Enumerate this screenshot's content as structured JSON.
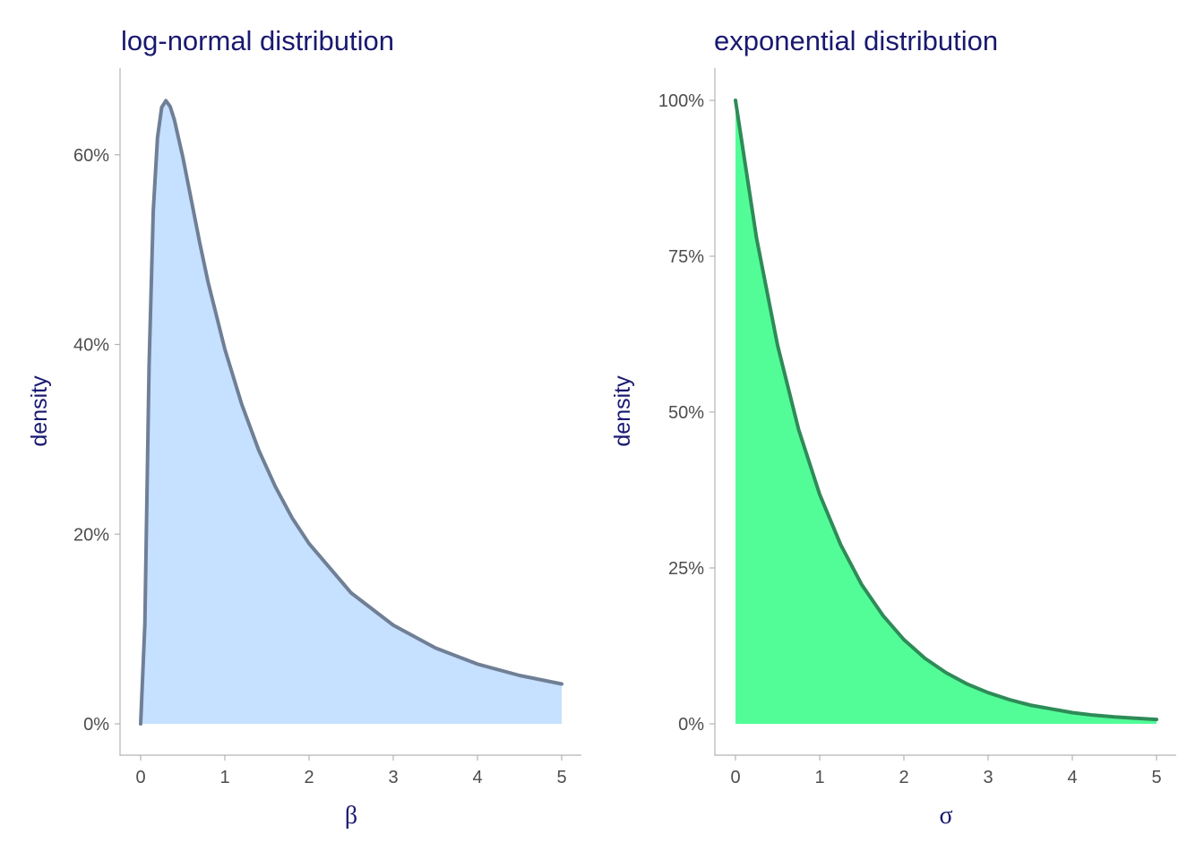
{
  "chart_data": [
    {
      "type": "area",
      "title": "log-normal distribution",
      "xlabel": "β",
      "ylabel": "density",
      "xlim": [
        0,
        5
      ],
      "ylim": [
        0,
        0.66
      ],
      "x_ticks": [
        0,
        1,
        2,
        3,
        4,
        5
      ],
      "y_ticks": [
        0,
        0.2,
        0.4,
        0.6
      ],
      "y_tick_labels": [
        "0%",
        "20%",
        "40%",
        "60%"
      ],
      "fill_color": "#c6e0ff",
      "line_color": "#6f7f96",
      "series": [
        {
          "x": [
            0.0,
            0.05,
            0.1,
            0.15,
            0.2,
            0.25,
            0.3,
            0.35,
            0.4,
            0.5,
            0.6,
            0.7,
            0.8,
            1.0,
            1.2,
            1.4,
            1.6,
            1.8,
            2.0,
            2.5,
            3.0,
            3.5,
            4.0,
            4.5,
            5.0
          ],
          "y": [
            0.0,
            0.105,
            0.377,
            0.541,
            0.618,
            0.65,
            0.657,
            0.651,
            0.637,
            0.598,
            0.553,
            0.508,
            0.466,
            0.395,
            0.337,
            0.289,
            0.25,
            0.217,
            0.19,
            0.138,
            0.104,
            0.08,
            0.063,
            0.051,
            0.042
          ]
        }
      ]
    },
    {
      "type": "area",
      "title": "exponential distribution",
      "xlabel": "σ",
      "ylabel": "density",
      "xlim": [
        0,
        5
      ],
      "ylim": [
        0,
        1
      ],
      "x_ticks": [
        0,
        1,
        2,
        3,
        4,
        5
      ],
      "y_ticks": [
        0,
        0.25,
        0.5,
        0.75,
        1.0
      ],
      "y_tick_labels": [
        "0%",
        "25%",
        "50%",
        "75%",
        "100%"
      ],
      "fill_color": "#52fd98",
      "line_color": "#2e8b57",
      "series": [
        {
          "x": [
            0.0,
            0.25,
            0.5,
            0.75,
            1.0,
            1.25,
            1.5,
            1.75,
            2.0,
            2.25,
            2.5,
            2.75,
            3.0,
            3.25,
            3.5,
            3.75,
            4.0,
            4.25,
            4.5,
            4.75,
            5.0
          ],
          "y": [
            1.0,
            0.779,
            0.607,
            0.472,
            0.368,
            0.287,
            0.223,
            0.174,
            0.135,
            0.105,
            0.082,
            0.064,
            0.05,
            0.039,
            0.03,
            0.024,
            0.018,
            0.014,
            0.011,
            0.009,
            0.007
          ]
        }
      ]
    }
  ]
}
